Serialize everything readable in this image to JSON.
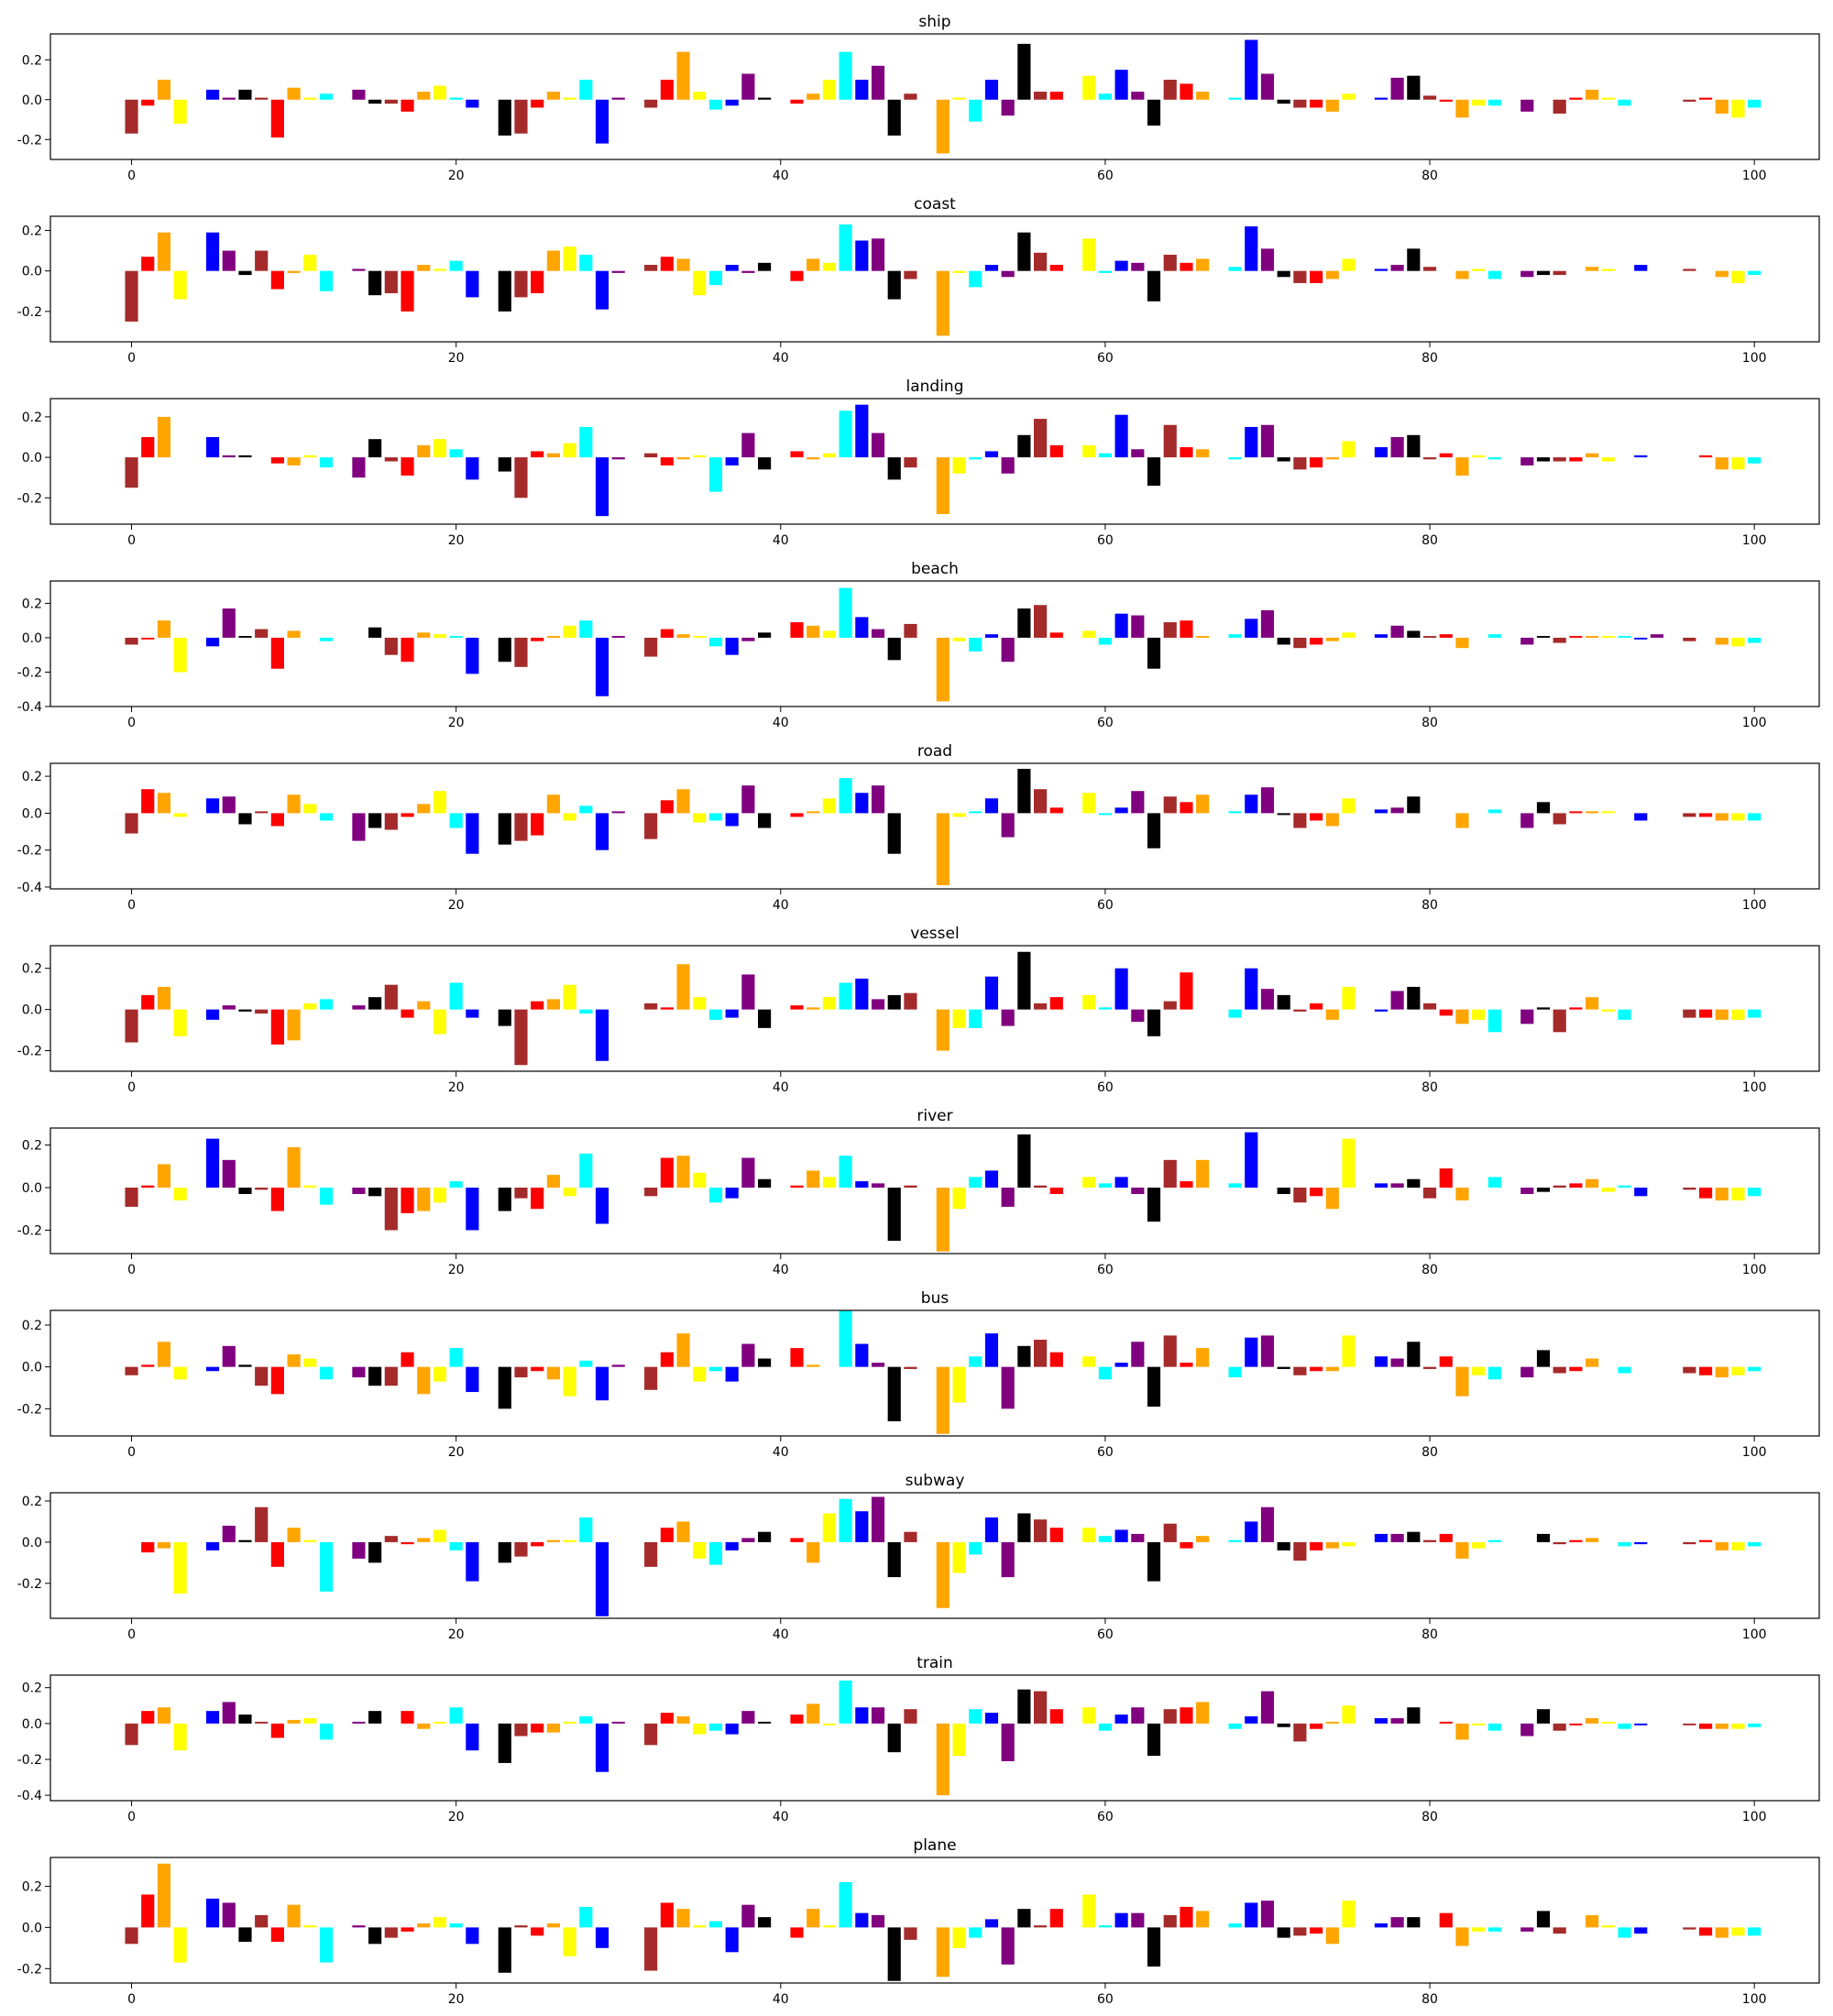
{
  "figure": {
    "palette": [
      "#a52a2a",
      "#ff0000",
      "#ffa500",
      "#ffff00",
      "#00ffff",
      "#0000ff",
      "#800080",
      "#000000"
    ],
    "xticks": [
      0,
      20,
      40,
      60,
      80,
      100
    ],
    "xlim": [
      -5,
      104
    ],
    "note_color_cycle": "bar i uses palette[i % 8]"
  },
  "chart_data": [
    {
      "type": "bar",
      "title": "ship",
      "xlabel": "",
      "ylabel": "",
      "ylim": [
        -0.3,
        0.33
      ],
      "yticks": [
        -0.2,
        0.0,
        0.2
      ],
      "x_start": 0,
      "values": [
        -0.17,
        -0.03,
        0.1,
        -0.12,
        0,
        0.05,
        0.01,
        0.05,
        0.01,
        -0.19,
        0.06,
        0.01,
        0.03,
        0,
        0.05,
        -0.02,
        -0.02,
        -0.06,
        0.04,
        0.07,
        0.01,
        -0.04,
        0,
        -0.18,
        -0.17,
        -0.04,
        0.04,
        0.01,
        0.1,
        -0.22,
        0.01,
        0,
        -0.04,
        0.1,
        0.24,
        0.04,
        -0.05,
        -0.03,
        0.13,
        0.01,
        0,
        -0.02,
        0.03,
        0.1,
        0.24,
        0.1,
        0.17,
        -0.18,
        0.03,
        0,
        -0.27,
        0.01,
        -0.11,
        0.1,
        -0.08,
        0.28,
        0.04,
        0.04,
        0,
        0.12,
        0.03,
        0.15,
        0.04,
        -0.13,
        0.1,
        0.08,
        0.04,
        0,
        0.01,
        0.3,
        0.13,
        -0.02,
        -0.04,
        -0.04,
        -0.06,
        0.03,
        0,
        0.01,
        0.11,
        0.12,
        0.02,
        -0.01,
        -0.09,
        -0.03,
        -0.03,
        0,
        -0.06,
        0,
        -0.07,
        0.01,
        0.05,
        0.01,
        -0.03,
        0,
        0,
        0,
        -0.01,
        0.01,
        -0.07,
        -0.09,
        -0.04
      ]
    },
    {
      "type": "bar",
      "title": "coast",
      "xlabel": "",
      "ylabel": "",
      "ylim": [
        -0.35,
        0.27
      ],
      "yticks": [
        -0.2,
        0.0,
        0.2
      ],
      "x_start": 0,
      "values": [
        -0.25,
        0.07,
        0.19,
        -0.14,
        0,
        0.19,
        0.1,
        -0.02,
        0.1,
        -0.09,
        -0.01,
        0.08,
        -0.1,
        0,
        0.01,
        -0.12,
        -0.11,
        -0.2,
        0.03,
        0.01,
        0.05,
        -0.13,
        0,
        -0.2,
        -0.13,
        -0.11,
        0.1,
        0.12,
        0.08,
        -0.19,
        -0.01,
        0,
        0.03,
        0.07,
        0.06,
        -0.12,
        -0.07,
        0.03,
        -0.01,
        0.04,
        0,
        -0.05,
        0.06,
        0.04,
        0.23,
        0.15,
        0.16,
        -0.14,
        -0.04,
        0,
        -0.32,
        -0.01,
        -0.08,
        0.03,
        -0.03,
        0.19,
        0.09,
        0.03,
        0,
        0.16,
        -0.01,
        0.05,
        0.04,
        -0.15,
        0.08,
        0.04,
        0.06,
        0,
        0.02,
        0.22,
        0.11,
        -0.03,
        -0.06,
        -0.06,
        -0.04,
        0.06,
        0,
        0.01,
        0.03,
        0.11,
        0.02,
        0,
        -0.04,
        0.01,
        -0.04,
        0,
        -0.03,
        -0.02,
        -0.02,
        0,
        0.02,
        0.01,
        0,
        0.03,
        0,
        0,
        0.01,
        0,
        -0.03,
        -0.06,
        -0.02
      ]
    },
    {
      "type": "bar",
      "title": "landing",
      "xlabel": "",
      "ylabel": "",
      "ylim": [
        -0.33,
        0.29
      ],
      "yticks": [
        -0.2,
        0.0,
        0.2
      ],
      "x_start": 0,
      "values": [
        -0.15,
        0.1,
        0.2,
        0,
        0,
        0.1,
        0.01,
        0.01,
        0,
        -0.03,
        -0.04,
        0.01,
        -0.05,
        0,
        -0.1,
        0.09,
        -0.02,
        -0.09,
        0.06,
        0.09,
        0.04,
        -0.11,
        0,
        -0.07,
        -0.2,
        0.03,
        0.02,
        0.07,
        0.15,
        -0.29,
        -0.01,
        0,
        0.02,
        -0.04,
        -0.01,
        0.01,
        -0.17,
        -0.04,
        0.12,
        -0.06,
        0,
        0.03,
        -0.01,
        0.02,
        0.23,
        0.26,
        0.12,
        -0.11,
        -0.05,
        0,
        -0.28,
        -0.08,
        -0.01,
        0.03,
        -0.08,
        0.11,
        0.19,
        0.06,
        0,
        0.06,
        0.02,
        0.21,
        0.04,
        -0.14,
        0.16,
        0.05,
        0.04,
        0,
        -0.01,
        0.15,
        0.16,
        -0.02,
        -0.06,
        -0.05,
        -0.01,
        0.08,
        0,
        0.05,
        0.1,
        0.11,
        -0.01,
        0.02,
        -0.09,
        0.01,
        -0.01,
        0,
        -0.04,
        -0.02,
        -0.02,
        -0.02,
        0.02,
        -0.02,
        0,
        0.01,
        0,
        0,
        0,
        0.01,
        -0.06,
        -0.06,
        -0.03
      ]
    },
    {
      "type": "bar",
      "title": "beach",
      "xlabel": "",
      "ylabel": "",
      "ylim": [
        -0.4,
        0.33
      ],
      "yticks": [
        -0.4,
        -0.2,
        0.0,
        0.2
      ],
      "x_start": 0,
      "values": [
        -0.04,
        -0.01,
        0.1,
        -0.2,
        0,
        -0.05,
        0.17,
        0.01,
        0.05,
        -0.18,
        0.04,
        0,
        -0.02,
        0,
        0,
        0.06,
        -0.1,
        -0.14,
        0.03,
        0.02,
        0.01,
        -0.21,
        0,
        -0.14,
        -0.17,
        -0.02,
        0.01,
        0.07,
        0.1,
        -0.34,
        0.01,
        0,
        -0.11,
        0.05,
        0.02,
        0.01,
        -0.05,
        -0.1,
        -0.02,
        0.03,
        0,
        0.09,
        0.07,
        0.04,
        0.29,
        0.12,
        0.05,
        -0.13,
        0.08,
        0,
        -0.37,
        -0.02,
        -0.08,
        0.02,
        -0.14,
        0.17,
        0.19,
        0.03,
        0,
        0.04,
        -0.04,
        0.14,
        0.13,
        -0.18,
        0.09,
        0.1,
        0.01,
        0,
        0.02,
        0.11,
        0.16,
        -0.04,
        -0.06,
        -0.04,
        -0.02,
        0.03,
        0,
        0.02,
        0.07,
        0.04,
        0.01,
        0.02,
        -0.06,
        0,
        0.02,
        0,
        -0.04,
        0.01,
        -0.03,
        0.01,
        0.01,
        0.01,
        0.01,
        -0.01,
        0.02,
        0,
        -0.02,
        0,
        -0.04,
        -0.05,
        -0.03
      ]
    },
    {
      "type": "bar",
      "title": "road",
      "xlabel": "",
      "ylabel": "",
      "ylim": [
        -0.41,
        0.27
      ],
      "yticks": [
        -0.4,
        -0.2,
        0.0,
        0.2
      ],
      "x_start": 0,
      "values": [
        -0.11,
        0.13,
        0.11,
        -0.02,
        0,
        0.08,
        0.09,
        -0.06,
        0.01,
        -0.07,
        0.1,
        0.05,
        -0.04,
        0,
        -0.15,
        -0.08,
        -0.09,
        -0.02,
        0.05,
        0.12,
        -0.08,
        -0.22,
        0,
        -0.17,
        -0.15,
        -0.12,
        0.1,
        -0.04,
        0.04,
        -0.2,
        0.01,
        0,
        -0.14,
        0.07,
        0.13,
        -0.05,
        -0.04,
        -0.07,
        0.15,
        -0.08,
        0,
        -0.02,
        0.01,
        0.08,
        0.19,
        0.11,
        0.15,
        -0.22,
        0,
        0,
        -0.39,
        -0.02,
        0.01,
        0.08,
        -0.13,
        0.24,
        0.13,
        0.03,
        0,
        0.11,
        -0.01,
        0.03,
        0.12,
        -0.19,
        0.09,
        0.06,
        0.1,
        0,
        0.01,
        0.1,
        0.14,
        -0.01,
        -0.08,
        -0.04,
        -0.07,
        0.08,
        0,
        0.02,
        0.03,
        0.09,
        0,
        0,
        -0.08,
        0,
        0.02,
        0,
        -0.08,
        0.06,
        -0.06,
        0.01,
        0.01,
        0.01,
        0,
        -0.04,
        0,
        0,
        -0.02,
        -0.02,
        -0.04,
        -0.04,
        -0.04
      ]
    },
    {
      "type": "bar",
      "title": "vessel",
      "xlabel": "",
      "ylabel": "",
      "ylim": [
        -0.3,
        0.31
      ],
      "yticks": [
        -0.2,
        0.0,
        0.2
      ],
      "x_start": 0,
      "values": [
        -0.16,
        0.07,
        0.11,
        -0.13,
        0,
        -0.05,
        0.02,
        -0.01,
        -0.02,
        -0.17,
        -0.15,
        0.03,
        0.05,
        0,
        0.02,
        0.06,
        0.12,
        -0.04,
        0.04,
        -0.12,
        0.13,
        -0.04,
        0,
        -0.08,
        -0.27,
        0.04,
        0.05,
        0.12,
        -0.02,
        -0.25,
        0,
        0,
        0.03,
        0.01,
        0.22,
        0.06,
        -0.05,
        -0.04,
        0.17,
        -0.09,
        0,
        0.02,
        0.01,
        0.06,
        0.13,
        0.15,
        0.05,
        0.07,
        0.08,
        0,
        -0.2,
        -0.09,
        -0.09,
        0.16,
        -0.08,
        0.28,
        0.03,
        0.06,
        0,
        0.07,
        0.01,
        0.2,
        -0.06,
        -0.13,
        0.04,
        0.18,
        0,
        0,
        -0.04,
        0.2,
        0.1,
        0.07,
        -0.01,
        0.03,
        -0.05,
        0.11,
        0,
        -0.01,
        0.09,
        0.11,
        0.03,
        -0.03,
        -0.07,
        -0.05,
        -0.11,
        0,
        -0.07,
        0.01,
        -0.11,
        0.01,
        0.06,
        -0.01,
        -0.05,
        0,
        0,
        0,
        -0.04,
        -0.04,
        -0.05,
        -0.05,
        -0.04
      ]
    },
    {
      "type": "bar",
      "title": "river",
      "xlabel": "",
      "ylabel": "",
      "ylim": [
        -0.31,
        0.28
      ],
      "yticks": [
        -0.2,
        0.0,
        0.2
      ],
      "x_start": 0,
      "values": [
        -0.09,
        0.01,
        0.11,
        -0.06,
        0,
        0.23,
        0.13,
        -0.03,
        -0.01,
        -0.11,
        0.19,
        0.01,
        -0.08,
        0,
        -0.03,
        -0.04,
        -0.2,
        -0.12,
        -0.11,
        -0.07,
        0.03,
        -0.2,
        0,
        -0.11,
        -0.05,
        -0.1,
        0.06,
        -0.04,
        0.16,
        -0.17,
        0,
        0,
        -0.04,
        0.14,
        0.15,
        0.07,
        -0.07,
        -0.05,
        0.14,
        0.04,
        0,
        0.01,
        0.08,
        0.05,
        0.15,
        0.03,
        0.02,
        -0.25,
        0.01,
        0,
        -0.3,
        -0.1,
        0.05,
        0.08,
        -0.09,
        0.25,
        0.01,
        -0.03,
        0,
        0.05,
        0.02,
        0.05,
        -0.03,
        -0.16,
        0.13,
        0.03,
        0.13,
        0,
        0.02,
        0.26,
        0,
        -0.03,
        -0.07,
        -0.04,
        -0.1,
        0.23,
        0,
        0.02,
        0.02,
        0.04,
        -0.05,
        0.09,
        -0.06,
        0,
        0.05,
        0,
        -0.03,
        -0.02,
        0.01,
        0.02,
        0.04,
        -0.02,
        0.01,
        -0.04,
        0,
        0,
        -0.01,
        -0.05,
        -0.06,
        -0.06,
        -0.04
      ]
    },
    {
      "type": "bar",
      "title": "bus",
      "xlabel": "",
      "ylabel": "",
      "ylim": [
        -0.33,
        0.27
      ],
      "yticks": [
        -0.2,
        0.0,
        0.2
      ],
      "x_start": 0,
      "values": [
        -0.04,
        0.01,
        0.12,
        -0.06,
        0,
        -0.02,
        0.1,
        0.01,
        -0.09,
        -0.13,
        0.06,
        0.04,
        -0.06,
        0,
        -0.05,
        -0.09,
        -0.09,
        0.07,
        -0.13,
        -0.07,
        0.09,
        -0.12,
        0,
        -0.2,
        -0.05,
        -0.02,
        -0.06,
        -0.14,
        0.03,
        -0.16,
        0.01,
        0,
        -0.11,
        0.07,
        0.16,
        -0.07,
        -0.02,
        -0.07,
        0.11,
        0.04,
        0,
        0.09,
        0.01,
        0,
        0.27,
        0.11,
        0.02,
        -0.26,
        -0.01,
        0,
        -0.32,
        -0.17,
        0.05,
        0.16,
        -0.2,
        0.1,
        0.13,
        0.07,
        0,
        0.05,
        -0.06,
        0.02,
        0.12,
        -0.19,
        0.15,
        0.02,
        0.09,
        0,
        -0.05,
        0.14,
        0.15,
        -0.01,
        -0.04,
        -0.02,
        -0.02,
        0.15,
        0,
        0.05,
        0.04,
        0.12,
        -0.01,
        0.05,
        -0.14,
        -0.04,
        -0.06,
        0,
        -0.05,
        0.08,
        -0.03,
        -0.02,
        0.04,
        0,
        -0.03,
        0,
        0,
        0,
        -0.03,
        -0.04,
        -0.05,
        -0.04,
        -0.02
      ]
    },
    {
      "type": "bar",
      "title": "subway",
      "xlabel": "",
      "ylabel": "",
      "ylim": [
        -0.37,
        0.24
      ],
      "yticks": [
        -0.2,
        0.0,
        0.2
      ],
      "x_start": 0,
      "values": [
        0,
        -0.05,
        -0.03,
        -0.25,
        0,
        -0.04,
        0.08,
        0.01,
        0.17,
        -0.12,
        0.07,
        0.01,
        -0.24,
        0,
        -0.08,
        -0.1,
        0.03,
        -0.01,
        0.02,
        0.06,
        -0.04,
        -0.19,
        0,
        -0.1,
        -0.07,
        -0.02,
        0.01,
        0.01,
        0.12,
        -0.36,
        0,
        0,
        -0.12,
        0.07,
        0.1,
        -0.08,
        -0.11,
        -0.04,
        0.02,
        0.05,
        0,
        0.02,
        -0.1,
        0.14,
        0.21,
        0.15,
        0.22,
        -0.17,
        0.05,
        0,
        -0.32,
        -0.15,
        -0.06,
        0.12,
        -0.17,
        0.14,
        0.11,
        0.07,
        0,
        0.07,
        0.03,
        0.06,
        0.04,
        -0.19,
        0.09,
        -0.03,
        0.03,
        0,
        0.01,
        0.1,
        0.17,
        -0.04,
        -0.09,
        -0.04,
        -0.03,
        -0.02,
        0,
        0.04,
        0.04,
        0.05,
        0.01,
        0.04,
        -0.08,
        -0.03,
        0.01,
        0,
        0,
        0.04,
        -0.01,
        0.01,
        0.02,
        0,
        -0.02,
        -0.01,
        0,
        0,
        -0.01,
        0.01,
        -0.04,
        -0.04,
        -0.02
      ]
    },
    {
      "type": "bar",
      "title": "train",
      "xlabel": "",
      "ylabel": "",
      "ylim": [
        -0.43,
        0.27
      ],
      "yticks": [
        -0.4,
        -0.2,
        0.0,
        0.2
      ],
      "x_start": 0,
      "values": [
        -0.12,
        0.07,
        0.09,
        -0.15,
        0,
        0.07,
        0.12,
        0.05,
        0.01,
        -0.08,
        0.02,
        0.03,
        -0.09,
        0,
        0.01,
        0.07,
        0,
        0.07,
        -0.03,
        0.01,
        0.09,
        -0.15,
        0,
        -0.22,
        -0.07,
        -0.05,
        -0.05,
        0.01,
        0.04,
        -0.27,
        0.01,
        0,
        -0.12,
        0.06,
        0.04,
        -0.06,
        -0.04,
        -0.06,
        0.07,
        0.01,
        0,
        0.05,
        0.11,
        -0.01,
        0.24,
        0.09,
        0.09,
        -0.16,
        0.08,
        0,
        -0.4,
        -0.18,
        0.08,
        0.06,
        -0.21,
        0.19,
        0.18,
        0.08,
        0,
        0.09,
        -0.04,
        0.05,
        0.09,
        -0.18,
        0.08,
        0.09,
        0.12,
        0,
        -0.03,
        0.04,
        0.18,
        -0.02,
        -0.1,
        -0.03,
        0.01,
        0.1,
        0,
        0.03,
        0.03,
        0.09,
        0,
        0.01,
        -0.09,
        -0.01,
        -0.04,
        0,
        -0.07,
        0.08,
        -0.04,
        -0.01,
        0.03,
        0.01,
        -0.03,
        -0.01,
        0,
        0,
        -0.01,
        -0.03,
        -0.03,
        -0.03,
        -0.02
      ]
    },
    {
      "type": "bar",
      "title": "plane",
      "xlabel": "",
      "ylabel": "",
      "ylim": [
        -0.27,
        0.34
      ],
      "yticks": [
        -0.2,
        0.0,
        0.2
      ],
      "x_start": 0,
      "values": [
        -0.08,
        0.16,
        0.31,
        -0.17,
        0,
        0.14,
        0.12,
        -0.07,
        0.06,
        -0.07,
        0.11,
        0.01,
        -0.17,
        0,
        0.01,
        -0.08,
        -0.05,
        -0.02,
        0.02,
        0.05,
        0.02,
        -0.08,
        0,
        -0.22,
        0.01,
        -0.04,
        0.02,
        -0.14,
        0.1,
        -0.1,
        0,
        0,
        -0.21,
        0.12,
        0.09,
        0.01,
        0.03,
        -0.12,
        0.11,
        0.05,
        0,
        -0.05,
        0.09,
        0.01,
        0.22,
        0.07,
        0.06,
        -0.26,
        -0.06,
        0,
        -0.24,
        -0.1,
        -0.05,
        0.04,
        -0.18,
        0.09,
        0.01,
        0.09,
        0,
        0.16,
        0.01,
        0.07,
        0.07,
        -0.19,
        0.06,
        0.1,
        0.08,
        0,
        0.02,
        0.12,
        0.13,
        -0.05,
        -0.04,
        -0.03,
        -0.08,
        0.13,
        0,
        0.02,
        0.05,
        0.05,
        0,
        0.07,
        -0.09,
        -0.02,
        -0.02,
        0,
        -0.02,
        0.08,
        -0.03,
        0,
        0.06,
        0.01,
        -0.05,
        -0.03,
        0,
        0,
        -0.01,
        -0.04,
        -0.05,
        -0.04,
        -0.04
      ]
    }
  ]
}
